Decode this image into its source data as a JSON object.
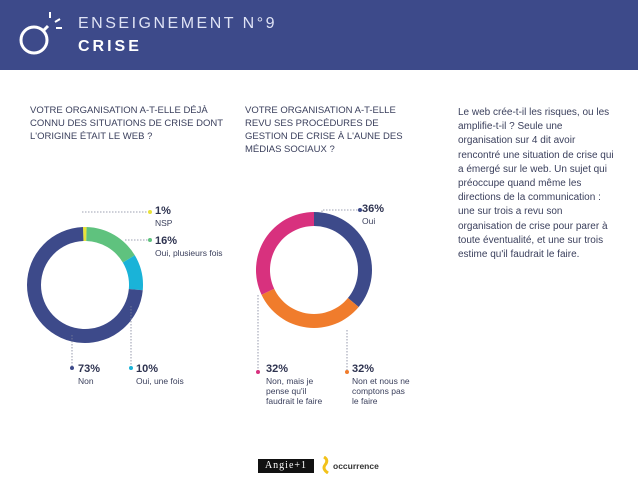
{
  "header": {
    "title": "ENSEIGNEMENT N°9",
    "subtitle": "CRISE",
    "icon": "bomb-icon",
    "bg_color": "#3d4a8a"
  },
  "intro_text": "Le web crée-t-il les risques, ou les amplifie-t-il ? Seule une organisation sur 4 dit avoir rencontré une situation de crise qui a émergé sur le web. Un sujet qui préoccupe quand même les directions de la communication : une sur trois a revu son organisation de crise pour parer à toute éventualité, et une sur trois estime qu'il faudrait le faire.",
  "chart_data": [
    {
      "type": "pie",
      "title": "VOTRE ORGANISATION A-T-ELLE DÉJÀ CONNU DES SITUATIONS DE CRISE DONT L'ORIGINE ÉTAIT LE WEB ?",
      "donut": true,
      "series": [
        {
          "label": "NSP",
          "pct_label": "1%",
          "value": 1,
          "color": "#e8e23a"
        },
        {
          "label": "Oui, plusieurs fois",
          "pct_label": "16%",
          "value": 16,
          "color": "#5fc27e"
        },
        {
          "label": "Oui, une fois",
          "pct_label": "10%",
          "value": 10,
          "color": "#1ab3d8"
        },
        {
          "label": "Non",
          "pct_label": "73%",
          "value": 73,
          "color": "#3d4a8a"
        }
      ]
    },
    {
      "type": "pie",
      "title": "VOTRE ORGANISATION A-T-ELLE REVU SES PROCÉDURES DE GESTION DE CRISE À L'AUNE DES MÉDIAS SOCIAUX ?",
      "donut": true,
      "series": [
        {
          "label": "Oui",
          "pct_label": "36%",
          "value": 36,
          "color": "#3d4a8a"
        },
        {
          "label": "Non et nous ne comptons pas le faire",
          "pct_label": "32%",
          "value": 32,
          "color": "#f07c2c"
        },
        {
          "label": "Non, mais je pense qu'il faudrait le faire",
          "pct_label": "32%",
          "value": 32,
          "color": "#d8317e"
        }
      ]
    }
  ],
  "labels": {
    "c1_nsp": {
      "pct": "1%",
      "text": "NSP"
    },
    "c1_plus": {
      "pct": "16%",
      "text": "Oui, plusieurs fois"
    },
    "c1_once": {
      "pct": "10%",
      "text": "Oui, une fois"
    },
    "c1_non": {
      "pct": "73%",
      "text": "Non"
    },
    "c2_oui": {
      "pct": "36%",
      "text": "Oui"
    },
    "c2_nonpas": {
      "pct": "32%",
      "text": "Non et nous ne comptons pas le faire"
    },
    "c2_nonmais": {
      "pct": "32%",
      "text": "Non, mais je pense qu'il faudrait le faire"
    }
  },
  "footer": {
    "logo1": "Angie+1",
    "logo2": "occurrence"
  }
}
